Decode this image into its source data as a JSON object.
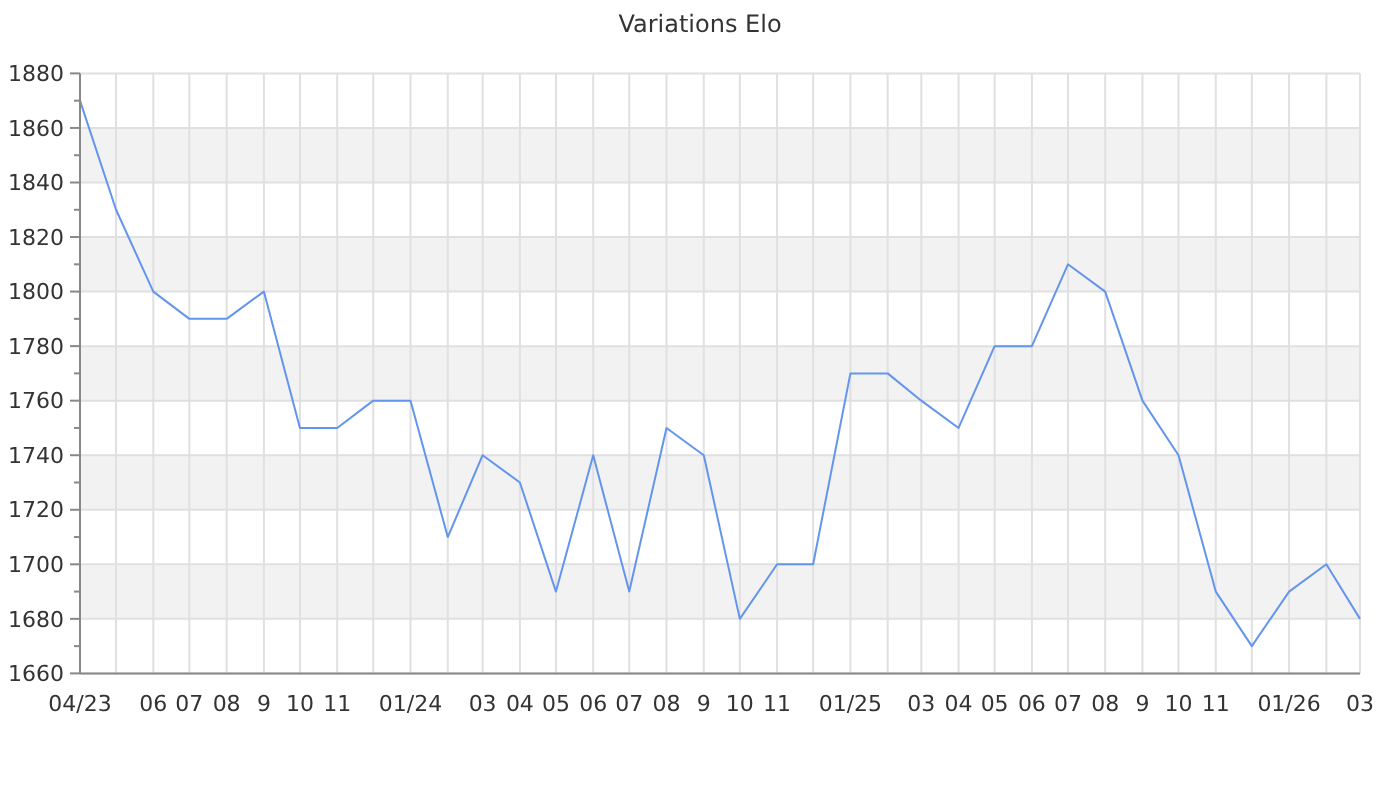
{
  "chart_data": {
    "type": "line",
    "title": "Variations Elo",
    "x": [
      "2023-04",
      "2023-05",
      "2023-06",
      "2023-07",
      "2023-08",
      "2023-09",
      "2023-10",
      "2023-11",
      "2023-12",
      "2024-01",
      "2024-02",
      "2024-03",
      "2024-04",
      "2024-05",
      "2024-06",
      "2024-07",
      "2024-08",
      "2024-09",
      "2024-10",
      "2024-11",
      "2024-12",
      "2025-01",
      "2025-02",
      "2025-03",
      "2025-04",
      "2025-05",
      "2025-06",
      "2025-07",
      "2025-08",
      "2025-09",
      "2025-10",
      "2025-11",
      "2025-12",
      "2026-01",
      "2026-02",
      "2026-03"
    ],
    "values": [
      1870,
      1830,
      1800,
      1790,
      1790,
      1800,
      1750,
      1750,
      1760,
      1760,
      1710,
      1740,
      1730,
      1690,
      1740,
      1690,
      1750,
      1740,
      1680,
      1700,
      1700,
      1770,
      1770,
      1760,
      1750,
      1780,
      1780,
      1810,
      1800,
      1760,
      1740,
      1690,
      1670,
      1690,
      1700,
      1680
    ],
    "color": "#6495ed",
    "xlim": [
      "2023-04",
      "2026-03"
    ],
    "xticks": [
      {
        "value": "2023-04",
        "label": "04/23"
      },
      {
        "value": "2023-05",
        "label": null
      },
      {
        "value": "2023-06",
        "label": "06"
      },
      {
        "value": "2023-07",
        "label": "07"
      },
      {
        "value": "2023-08",
        "label": "08"
      },
      {
        "value": "2023-09",
        "label": "9"
      },
      {
        "value": "2023-10",
        "label": "10"
      },
      {
        "value": "2023-11",
        "label": "11"
      },
      {
        "value": "2023-12",
        "label": null
      },
      {
        "value": "2024-01",
        "label": "01/24"
      },
      {
        "value": "2024-02",
        "label": null
      },
      {
        "value": "2024-03",
        "label": "03"
      },
      {
        "value": "2024-04",
        "label": "04"
      },
      {
        "value": "2024-05",
        "label": "05"
      },
      {
        "value": "2024-06",
        "label": "06"
      },
      {
        "value": "2024-07",
        "label": "07"
      },
      {
        "value": "2024-08",
        "label": "08"
      },
      {
        "value": "2024-09",
        "label": "9"
      },
      {
        "value": "2024-10",
        "label": "10"
      },
      {
        "value": "2024-11",
        "label": "11"
      },
      {
        "value": "2024-12",
        "label": null
      },
      {
        "value": "2025-01",
        "label": "01/25"
      },
      {
        "value": "2025-02",
        "label": null
      },
      {
        "value": "2025-03",
        "label": "03"
      },
      {
        "value": "2025-04",
        "label": "04"
      },
      {
        "value": "2025-05",
        "label": "05"
      },
      {
        "value": "2025-06",
        "label": "06"
      },
      {
        "value": "2025-07",
        "label": "07"
      },
      {
        "value": "2025-08",
        "label": "08"
      },
      {
        "value": "2025-09",
        "label": "9"
      },
      {
        "value": "2025-10",
        "label": "10"
      },
      {
        "value": "2025-11",
        "label": "11"
      },
      {
        "value": "2025-12",
        "label": null
      },
      {
        "value": "2026-01",
        "label": "01/26"
      },
      {
        "value": "2026-02",
        "label": null
      },
      {
        "value": "2026-03",
        "label": "03"
      }
    ],
    "ylim": [
      1660,
      1880
    ],
    "yticks": [
      1660,
      {
        "value": 1670,
        "label": null
      },
      1680,
      {
        "value": 1690,
        "label": null
      },
      1700,
      {
        "value": 1710,
        "label": null
      },
      1720,
      {
        "value": 1730,
        "label": null
      },
      1740,
      {
        "value": 1750,
        "label": null
      },
      1760,
      {
        "value": 1770,
        "label": null
      },
      1780,
      {
        "value": 1790,
        "label": null
      },
      1800,
      {
        "value": 1810,
        "label": null
      },
      1820,
      {
        "value": 1830,
        "label": null
      },
      1840,
      {
        "value": 1850,
        "label": null
      },
      1860,
      {
        "value": 1870,
        "label": null
      },
      1880
    ],
    "grid": true
  }
}
